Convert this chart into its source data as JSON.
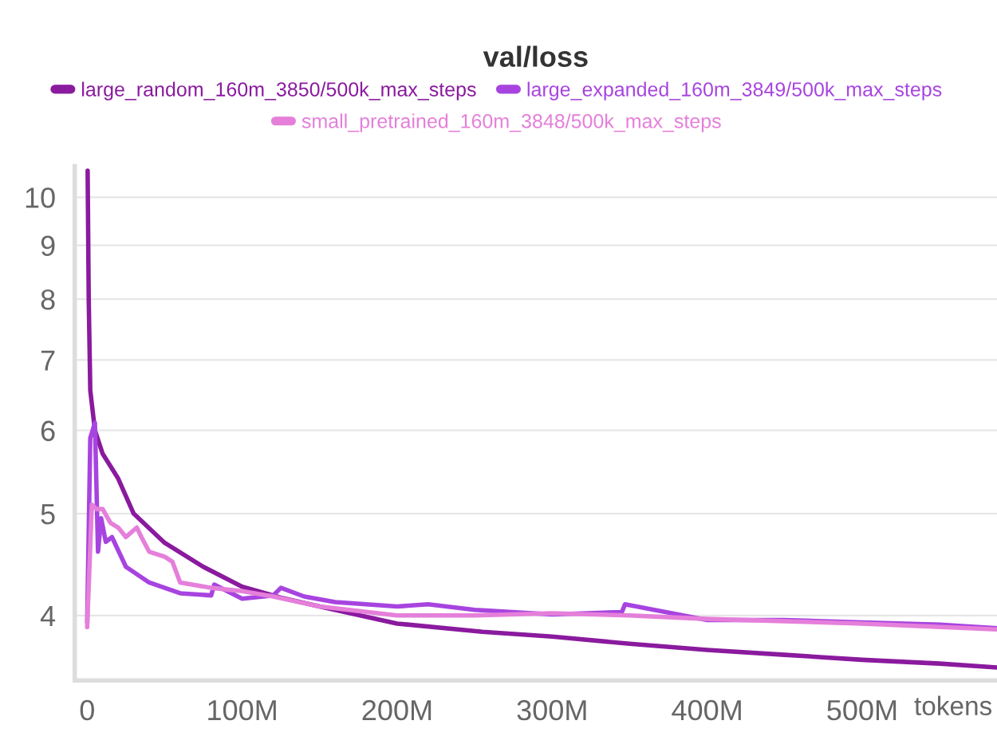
{
  "chart_data": {
    "type": "line",
    "title": "val/loss",
    "xlabel": "tokens",
    "log": "y",
    "grid": "y",
    "legend": "top",
    "line_style": "solid",
    "marker": "none",
    "xlim": [
      -8000000,
      587000000
    ],
    "ylim": [
      3.47,
      10.7
    ],
    "xticks": [
      {
        "value": 0,
        "label": "0"
      },
      {
        "value": 100000000,
        "label": "100M"
      },
      {
        "value": 200000000,
        "label": "200M"
      },
      {
        "value": 300000000,
        "label": "300M"
      },
      {
        "value": 400000000,
        "label": "400M"
      },
      {
        "value": 500000000,
        "label": "500M"
      }
    ],
    "yticks": [
      4,
      5,
      6,
      7,
      8,
      9,
      10
    ],
    "series": [
      {
        "name": "large_random_160m_3850/500k_max_steps",
        "color": "#8a1a9e",
        "x": [
          300000,
          1000000,
          2000000,
          5000000,
          10000000,
          20000000,
          30000000,
          50000000,
          75000000,
          100000000,
          125000000,
          150000000,
          200000000,
          255000000,
          300000000,
          350000000,
          400000000,
          450000000,
          500000000,
          550000000,
          587000000
        ],
        "values": [
          10.6,
          8.0,
          6.55,
          6.0,
          5.7,
          5.4,
          5.0,
          4.69,
          4.45,
          4.26,
          4.16,
          4.08,
          3.93,
          3.86,
          3.82,
          3.76,
          3.71,
          3.67,
          3.63,
          3.6,
          3.57
        ]
      },
      {
        "name": "large_expanded_160m_3849/500k_max_steps",
        "color": "#a744e0",
        "x": [
          0,
          2000000,
          5000000,
          7000000,
          9000000,
          12000000,
          16000000,
          25000000,
          40000000,
          60000000,
          80000000,
          82000000,
          100000000,
          120000000,
          125000000,
          140000000,
          160000000,
          200000000,
          220000000,
          250000000,
          300000000,
          345000000,
          347000000,
          400000000,
          450000000,
          500000000,
          550000000,
          587000000
        ],
        "values": [
          3.94,
          5.9,
          6.1,
          4.6,
          4.95,
          4.7,
          4.75,
          4.45,
          4.3,
          4.2,
          4.18,
          4.28,
          4.15,
          4.18,
          4.25,
          4.17,
          4.12,
          4.08,
          4.1,
          4.05,
          4.01,
          4.03,
          4.1,
          3.96,
          3.96,
          3.94,
          3.92,
          3.89
        ]
      },
      {
        "name": "small_pretrained_160m_3848/500k_max_steps",
        "color": "#e57fda",
        "x": [
          0,
          3000000,
          6000000,
          10000000,
          15000000,
          20000000,
          25000000,
          32000000,
          35000000,
          40000000,
          50000000,
          55000000,
          60000000,
          80000000,
          100000000,
          120000000,
          150000000,
          200000000,
          250000000,
          300000000,
          350000000,
          400000000,
          500000000,
          587000000
        ],
        "values": [
          3.9,
          5.1,
          5.05,
          5.05,
          4.9,
          4.85,
          4.75,
          4.85,
          4.75,
          4.6,
          4.55,
          4.5,
          4.3,
          4.25,
          4.22,
          4.17,
          4.08,
          4.0,
          4.0,
          4.02,
          4.0,
          3.97,
          3.93,
          3.88
        ]
      }
    ]
  }
}
